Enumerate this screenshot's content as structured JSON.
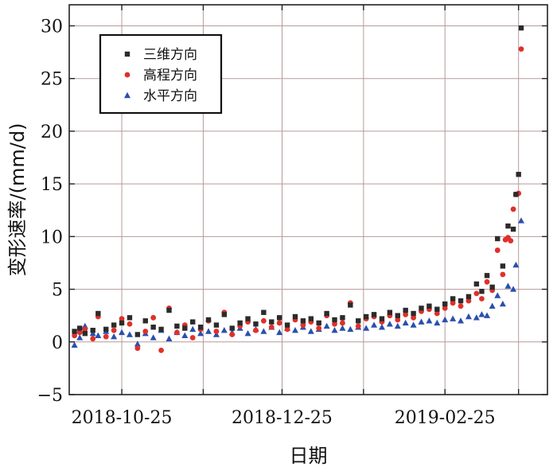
{
  "chart_data": {
    "type": "scatter",
    "xlabel": "日期",
    "ylabel": "变形速率/(mm/d)",
    "x_ticks": [
      "2018-10-25",
      "2018-12-25",
      "2019-02-25"
    ],
    "x_grid": [
      "2018-10-25",
      "2018-11-25",
      "2018-12-25",
      "2019-01-25",
      "2019-02-25",
      "2019-03-25"
    ],
    "xlim": [
      "2018-10-05",
      "2019-04-05"
    ],
    "ylim": [
      -5,
      32
    ],
    "y_ticks": [
      -5,
      0,
      5,
      10,
      15,
      20,
      25,
      30
    ],
    "grid": true,
    "legend_position": "top-left",
    "series": [
      {
        "name": "三维方向",
        "marker": "square",
        "color": "#2b2b2b",
        "points": [
          [
            "2018-10-07",
            1.0
          ],
          [
            "2018-10-09",
            1.3
          ],
          [
            "2018-10-11",
            0.8
          ],
          [
            "2018-10-14",
            1.1
          ],
          [
            "2018-10-16",
            2.7
          ],
          [
            "2018-10-19",
            1.2
          ],
          [
            "2018-10-22",
            1.6
          ],
          [
            "2018-10-25",
            1.8
          ],
          [
            "2018-10-28",
            2.3
          ],
          [
            "2018-10-31",
            0.7
          ],
          [
            "2018-11-03",
            2.0
          ],
          [
            "2018-11-06",
            1.4
          ],
          [
            "2018-11-09",
            1.2
          ],
          [
            "2018-11-12",
            3.0
          ],
          [
            "2018-11-15",
            1.5
          ],
          [
            "2018-11-18",
            1.3
          ],
          [
            "2018-11-21",
            1.9
          ],
          [
            "2018-11-24",
            1.4
          ],
          [
            "2018-11-27",
            2.1
          ],
          [
            "2018-11-30",
            1.6
          ],
          [
            "2018-12-03",
            2.6
          ],
          [
            "2018-12-06",
            1.3
          ],
          [
            "2018-12-09",
            1.8
          ],
          [
            "2018-12-12",
            2.2
          ],
          [
            "2018-12-15",
            1.7
          ],
          [
            "2018-12-18",
            2.8
          ],
          [
            "2018-12-21",
            1.9
          ],
          [
            "2018-12-24",
            2.3
          ],
          [
            "2018-12-27",
            1.6
          ],
          [
            "2018-12-30",
            2.4
          ],
          [
            "2019-01-02",
            2.0
          ],
          [
            "2019-01-05",
            2.2
          ],
          [
            "2019-01-08",
            1.8
          ],
          [
            "2019-01-11",
            2.7
          ],
          [
            "2019-01-14",
            2.1
          ],
          [
            "2019-01-17",
            2.3
          ],
          [
            "2019-01-20",
            3.5
          ],
          [
            "2019-01-23",
            2.0
          ],
          [
            "2019-01-26",
            2.4
          ],
          [
            "2019-01-29",
            2.6
          ],
          [
            "2019-02-01",
            2.2
          ],
          [
            "2019-02-04",
            2.8
          ],
          [
            "2019-02-07",
            2.5
          ],
          [
            "2019-02-10",
            3.0
          ],
          [
            "2019-02-13",
            2.7
          ],
          [
            "2019-02-16",
            3.2
          ],
          [
            "2019-02-19",
            3.4
          ],
          [
            "2019-02-22",
            3.1
          ],
          [
            "2019-02-25",
            3.6
          ],
          [
            "2019-02-28",
            4.1
          ],
          [
            "2019-03-03",
            3.9
          ],
          [
            "2019-03-06",
            4.3
          ],
          [
            "2019-03-09",
            5.5
          ],
          [
            "2019-03-11",
            4.8
          ],
          [
            "2019-03-13",
            6.3
          ],
          [
            "2019-03-15",
            5.2
          ],
          [
            "2019-03-17",
            9.8
          ],
          [
            "2019-03-19",
            7.2
          ],
          [
            "2019-03-21",
            11.0
          ],
          [
            "2019-03-23",
            10.7
          ],
          [
            "2019-03-24",
            14.0
          ],
          [
            "2019-03-25",
            15.9
          ],
          [
            "2019-03-26",
            29.8
          ]
        ]
      },
      {
        "name": "高程方向",
        "marker": "circle",
        "color": "#e0302a",
        "points": [
          [
            "2018-10-07",
            0.6
          ],
          [
            "2018-10-09",
            0.9
          ],
          [
            "2018-10-11",
            1.2
          ],
          [
            "2018-10-14",
            0.3
          ],
          [
            "2018-10-16",
            2.4
          ],
          [
            "2018-10-19",
            0.5
          ],
          [
            "2018-10-22",
            1.1
          ],
          [
            "2018-10-25",
            2.2
          ],
          [
            "2018-10-28",
            1.7
          ],
          [
            "2018-10-31",
            -0.6
          ],
          [
            "2018-11-03",
            1.0
          ],
          [
            "2018-11-06",
            2.3
          ],
          [
            "2018-11-09",
            -0.8
          ],
          [
            "2018-11-12",
            3.2
          ],
          [
            "2018-11-15",
            0.9
          ],
          [
            "2018-11-18",
            1.6
          ],
          [
            "2018-11-21",
            0.4
          ],
          [
            "2018-11-24",
            1.2
          ],
          [
            "2018-11-27",
            2.0
          ],
          [
            "2018-11-30",
            1.0
          ],
          [
            "2018-12-03",
            2.8
          ],
          [
            "2018-12-06",
            0.7
          ],
          [
            "2018-12-09",
            1.5
          ],
          [
            "2018-12-12",
            1.9
          ],
          [
            "2018-12-15",
            1.1
          ],
          [
            "2018-12-18",
            2.0
          ],
          [
            "2018-12-21",
            1.4
          ],
          [
            "2018-12-24",
            1.8
          ],
          [
            "2018-12-27",
            1.2
          ],
          [
            "2018-12-30",
            2.1
          ],
          [
            "2019-01-02",
            1.6
          ],
          [
            "2019-01-05",
            1.9
          ],
          [
            "2019-01-08",
            1.3
          ],
          [
            "2019-01-11",
            2.5
          ],
          [
            "2019-01-14",
            1.7
          ],
          [
            "2019-01-17",
            1.8
          ],
          [
            "2019-01-20",
            3.7
          ],
          [
            "2019-01-23",
            1.5
          ],
          [
            "2019-01-26",
            2.2
          ],
          [
            "2019-01-29",
            2.4
          ],
          [
            "2019-02-01",
            1.9
          ],
          [
            "2019-02-04",
            2.5
          ],
          [
            "2019-02-07",
            2.1
          ],
          [
            "2019-02-10",
            2.6
          ],
          [
            "2019-02-13",
            2.3
          ],
          [
            "2019-02-16",
            2.9
          ],
          [
            "2019-02-19",
            3.1
          ],
          [
            "2019-02-22",
            2.7
          ],
          [
            "2019-02-25",
            3.2
          ],
          [
            "2019-02-28",
            3.7
          ],
          [
            "2019-03-03",
            3.4
          ],
          [
            "2019-03-06",
            3.9
          ],
          [
            "2019-03-09",
            4.6
          ],
          [
            "2019-03-11",
            4.1
          ],
          [
            "2019-03-13",
            5.7
          ],
          [
            "2019-03-15",
            4.9
          ],
          [
            "2019-03-17",
            8.7
          ],
          [
            "2019-03-19",
            6.4
          ],
          [
            "2019-03-20",
            9.7
          ],
          [
            "2019-03-21",
            9.9
          ],
          [
            "2019-03-22",
            9.6
          ],
          [
            "2019-03-23",
            12.6
          ],
          [
            "2019-03-24",
            14.0
          ],
          [
            "2019-03-25",
            14.1
          ],
          [
            "2019-03-26",
            27.8
          ]
        ]
      },
      {
        "name": "水平方向",
        "marker": "triangle",
        "color": "#2a4fae",
        "points": [
          [
            "2018-10-07",
            -0.3
          ],
          [
            "2018-10-09",
            0.4
          ],
          [
            "2018-10-11",
            1.5
          ],
          [
            "2018-10-14",
            0.8
          ],
          [
            "2018-10-16",
            0.6
          ],
          [
            "2018-10-19",
            1.0
          ],
          [
            "2018-10-22",
            0.5
          ],
          [
            "2018-10-25",
            0.9
          ],
          [
            "2018-10-28",
            0.7
          ],
          [
            "2018-10-31",
            -0.2
          ],
          [
            "2018-11-03",
            0.8
          ],
          [
            "2018-11-06",
            0.4
          ],
          [
            "2018-11-09",
            1.1
          ],
          [
            "2018-11-12",
            0.3
          ],
          [
            "2018-11-15",
            0.9
          ],
          [
            "2018-11-18",
            0.6
          ],
          [
            "2018-11-21",
            1.2
          ],
          [
            "2018-11-24",
            0.8
          ],
          [
            "2018-11-27",
            1.0
          ],
          [
            "2018-11-30",
            0.7
          ],
          [
            "2018-12-03",
            1.1
          ],
          [
            "2018-12-06",
            0.9
          ],
          [
            "2018-12-09",
            1.3
          ],
          [
            "2018-12-12",
            0.8
          ],
          [
            "2018-12-15",
            1.2
          ],
          [
            "2018-12-18",
            1.0
          ],
          [
            "2018-12-21",
            1.4
          ],
          [
            "2018-12-24",
            0.9
          ],
          [
            "2018-12-27",
            1.3
          ],
          [
            "2018-12-30",
            1.1
          ],
          [
            "2019-01-02",
            1.4
          ],
          [
            "2019-01-05",
            1.0
          ],
          [
            "2019-01-08",
            1.2
          ],
          [
            "2019-01-11",
            1.5
          ],
          [
            "2019-01-14",
            1.1
          ],
          [
            "2019-01-17",
            1.3
          ],
          [
            "2019-01-20",
            1.2
          ],
          [
            "2019-01-23",
            1.4
          ],
          [
            "2019-01-26",
            1.3
          ],
          [
            "2019-01-29",
            1.6
          ],
          [
            "2019-02-01",
            1.4
          ],
          [
            "2019-02-04",
            1.7
          ],
          [
            "2019-02-07",
            1.5
          ],
          [
            "2019-02-10",
            1.8
          ],
          [
            "2019-02-13",
            1.6
          ],
          [
            "2019-02-16",
            1.9
          ],
          [
            "2019-02-19",
            2.0
          ],
          [
            "2019-02-22",
            1.8
          ],
          [
            "2019-02-25",
            2.1
          ],
          [
            "2019-02-28",
            2.2
          ],
          [
            "2019-03-03",
            2.0
          ],
          [
            "2019-03-06",
            2.4
          ],
          [
            "2019-03-09",
            2.3
          ],
          [
            "2019-03-11",
            2.6
          ],
          [
            "2019-03-13",
            2.5
          ],
          [
            "2019-03-15",
            3.4
          ],
          [
            "2019-03-17",
            4.4
          ],
          [
            "2019-03-19",
            3.6
          ],
          [
            "2019-03-21",
            5.3
          ],
          [
            "2019-03-23",
            5.0
          ],
          [
            "2019-03-24",
            7.3
          ],
          [
            "2019-03-26",
            11.5
          ]
        ]
      }
    ]
  }
}
